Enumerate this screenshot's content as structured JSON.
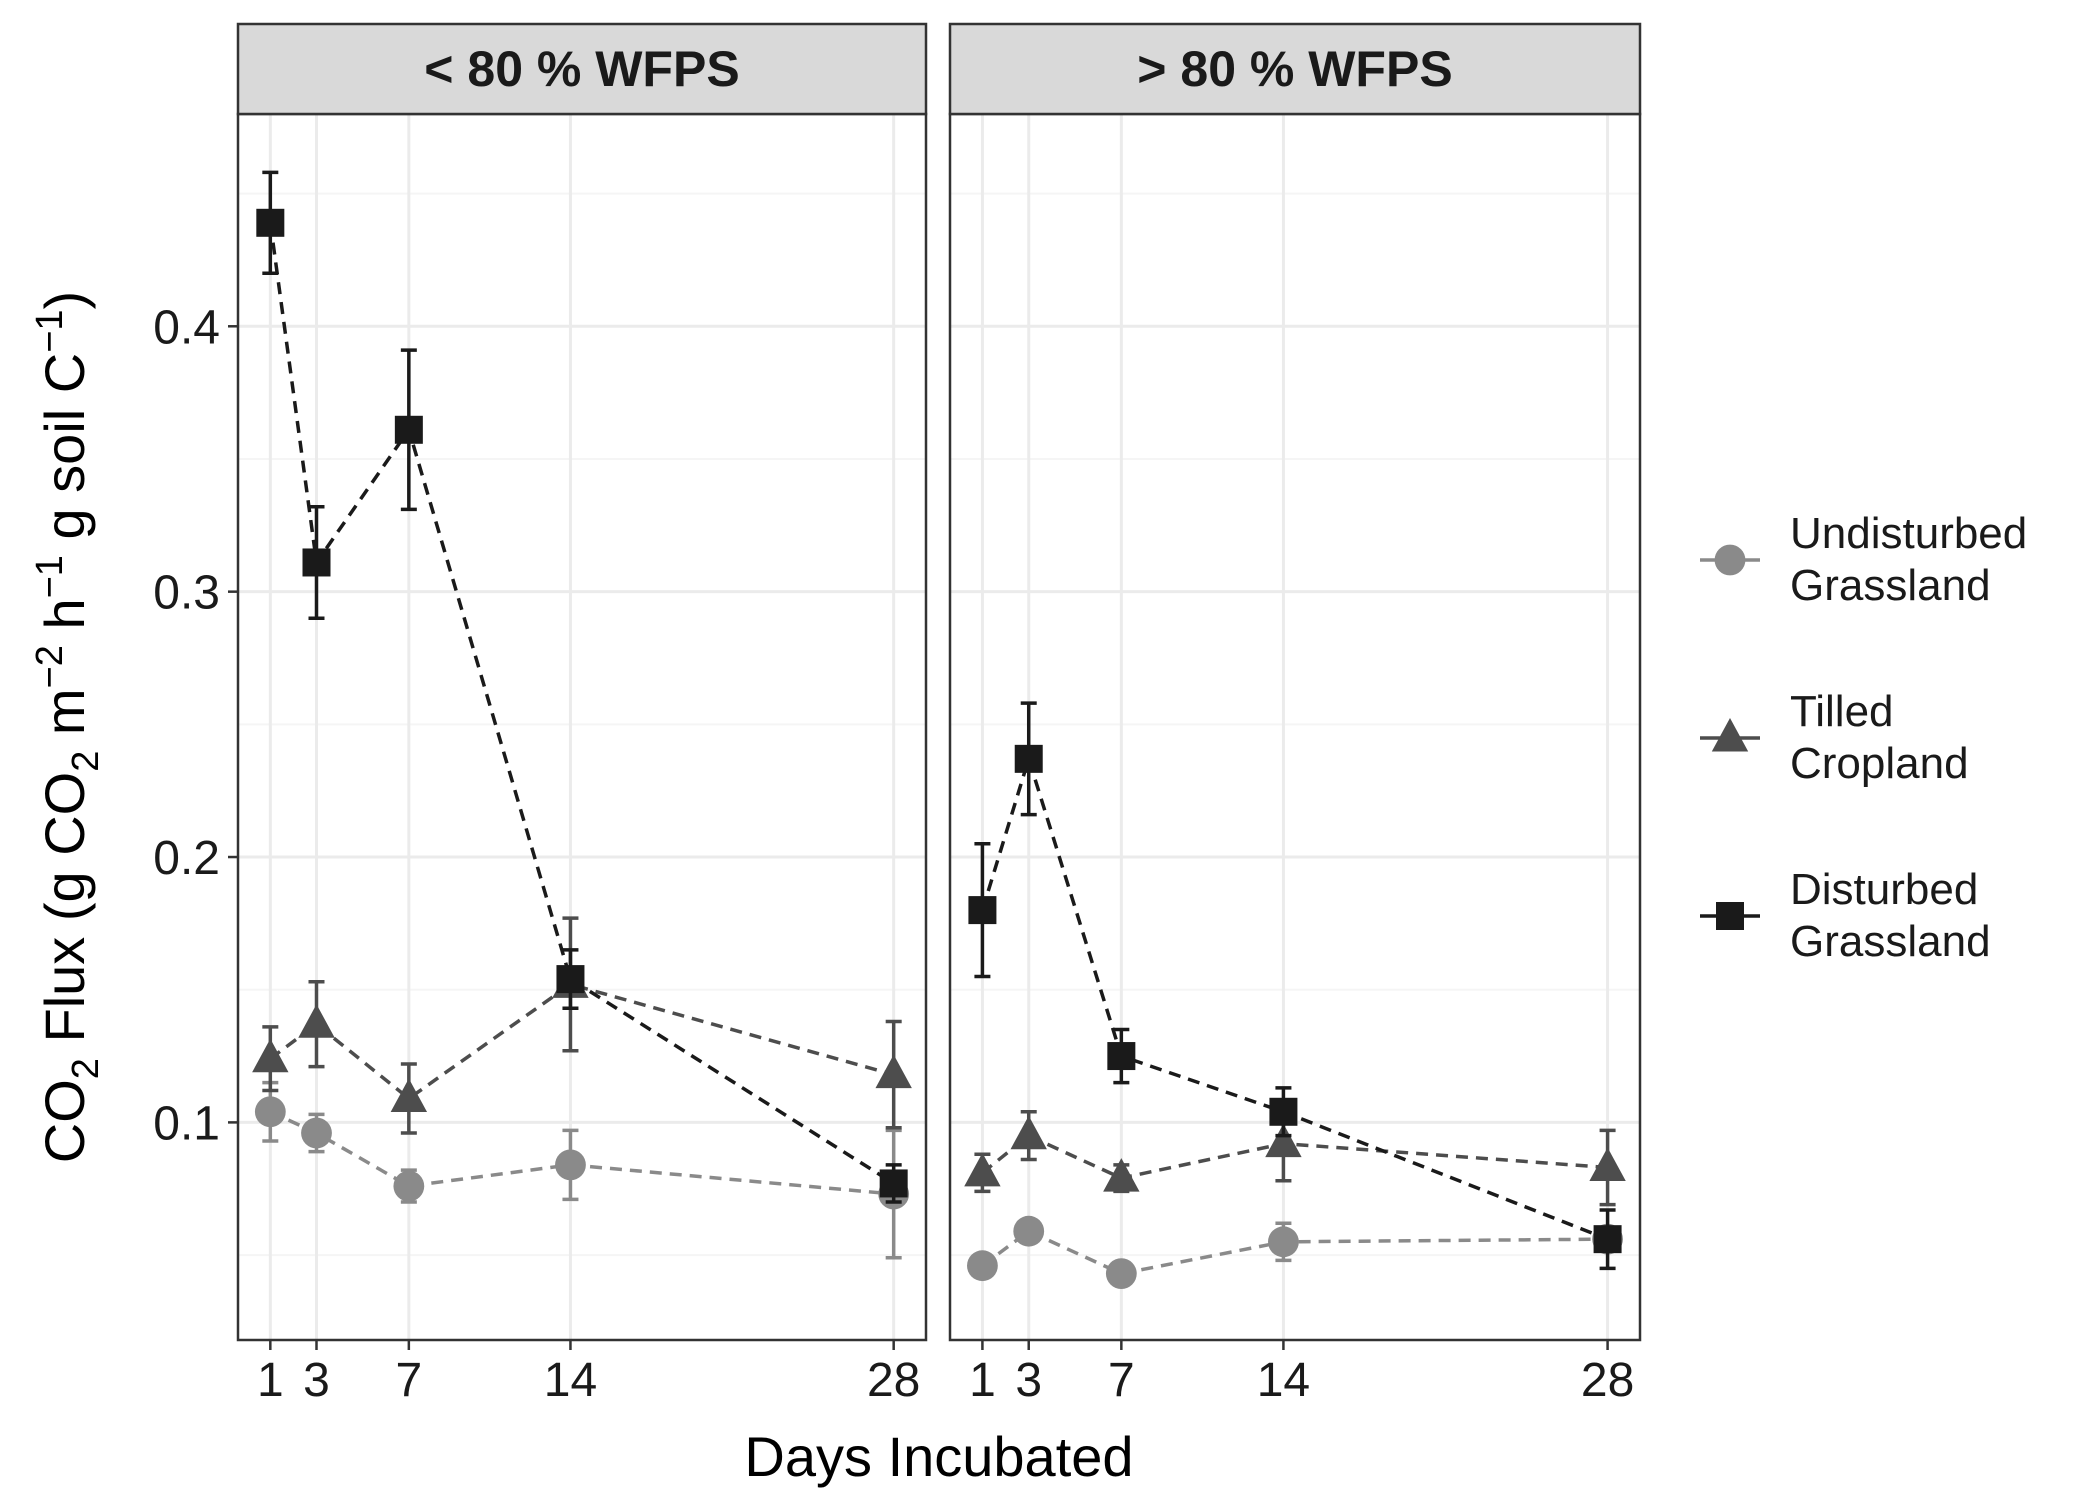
{
  "chart_data": {
    "type": "line",
    "x": [
      1,
      3,
      7,
      14,
      28
    ],
    "xlabel": "Days Incubated",
    "ylabel": {
      "parts": [
        "CO",
        "2",
        " Flux (g CO",
        "2",
        " m",
        "−2",
        " h",
        "−1",
        " g soil C",
        "−1",
        ")"
      ]
    },
    "xlim": [
      -0.4,
      29.4
    ],
    "ylim": [
      0.018,
      0.48
    ],
    "x_ticks": [
      1,
      3,
      7,
      14,
      28
    ],
    "x_tick_labels": [
      "1",
      "3",
      "7",
      "14",
      "28"
    ],
    "y_ticks": [
      0.1,
      0.2,
      0.3,
      0.4
    ],
    "y_tick_labels": [
      "0.1",
      "0.2",
      "0.3",
      "0.4"
    ],
    "y_minor_ticks": [
      0.05,
      0.15,
      0.25,
      0.35,
      0.45
    ],
    "grid": true,
    "legend_position": "right",
    "facets": [
      {
        "label": "< 80 % WFPS",
        "series": [
          {
            "key": "undisturbed",
            "values": [
              0.104,
              0.096,
              0.076,
              0.084,
              0.073
            ],
            "err": [
              0.011,
              0.007,
              0.006,
              0.013,
              0.024
            ]
          },
          {
            "key": "tilled",
            "values": [
              0.124,
              0.137,
              0.109,
              0.152,
              0.118
            ],
            "err": [
              0.012,
              0.016,
              0.013,
              0.025,
              0.02
            ]
          },
          {
            "key": "disturbed",
            "values": [
              0.439,
              0.311,
              0.361,
              0.154,
              0.077
            ],
            "err": [
              0.019,
              0.021,
              0.03,
              0.011,
              0.007
            ]
          }
        ]
      },
      {
        "label": "> 80 % WFPS",
        "series": [
          {
            "key": "undisturbed",
            "values": [
              0.046,
              0.059,
              0.043,
              0.055,
              0.056
            ],
            "err": [
              0.002,
              0.004,
              0.002,
              0.007,
              0.003
            ]
          },
          {
            "key": "tilled",
            "values": [
              0.081,
              0.095,
              0.079,
              0.092,
              0.083
            ],
            "err": [
              0.007,
              0.009,
              0.005,
              0.014,
              0.014
            ]
          },
          {
            "key": "disturbed",
            "values": [
              0.18,
              0.237,
              0.125,
              0.104,
              0.056
            ],
            "err": [
              0.025,
              0.021,
              0.01,
              0.009,
              0.011
            ]
          }
        ]
      }
    ],
    "legend": [
      {
        "key": "undisturbed",
        "lines": [
          "Undisturbed",
          "Grassland"
        ],
        "marker": "circle",
        "color": "#8a8a8a"
      },
      {
        "key": "tilled",
        "lines": [
          "Tilled",
          "Cropland"
        ],
        "marker": "triangle",
        "color": "#4d4d4d"
      },
      {
        "key": "disturbed",
        "lines": [
          "Disturbed",
          "Grassland"
        ],
        "marker": "square",
        "color": "#1a1a1a"
      }
    ],
    "colors": {
      "strip_bg": "#d9d9d9",
      "panel_border": "#333333",
      "grid_major": "#ebebeb",
      "grid_minor": "#f5f5f5"
    }
  }
}
